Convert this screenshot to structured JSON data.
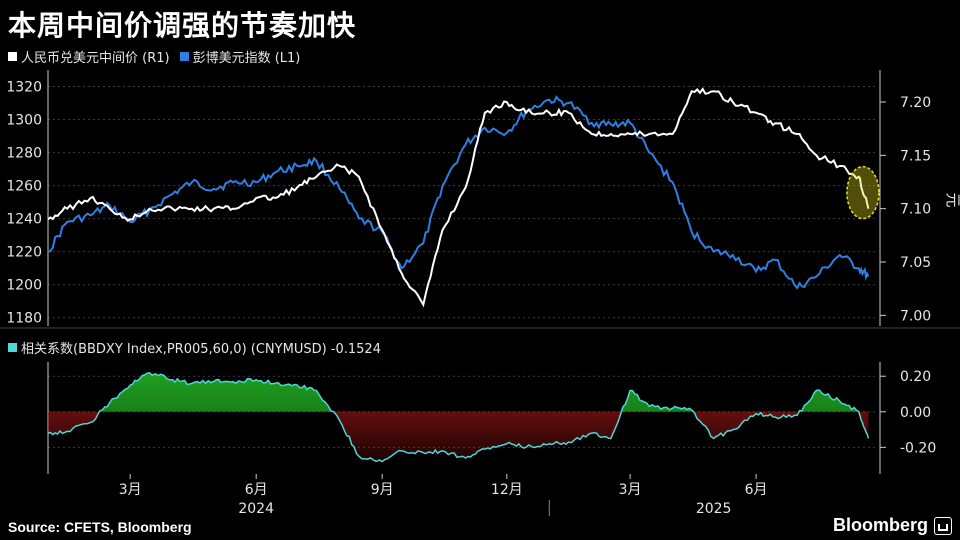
{
  "title": "本周中间价调强的节奏加快",
  "legend": {
    "cny": "人民币兑美元中间价 (R1)",
    "dxy": "彭博美元指数 (L1)",
    "corr": "相关系数(BBDXY Index,PR005,60,0) (CNYMUSD) -0.1524"
  },
  "right_unit": "元",
  "source": "Source: CFETS, Bloomberg",
  "brand": "Bloomberg",
  "colors": {
    "cny": "#ffffff",
    "dxy": "#2f7fe0",
    "positive": "#1fa01f",
    "negative": "#b01818",
    "corr_line": "#4fd6d6",
    "highlight": "#e8e020",
    "grid": "#3a3a3a"
  },
  "chart_data": [
    {
      "type": "line",
      "x_axis": {
        "ticks": [
          "3月",
          "6月",
          "9月",
          "12月",
          "3月",
          "6月"
        ],
        "years": [
          "2024",
          "2025"
        ]
      },
      "left_axis": {
        "ylim": [
          1175,
          1330
        ],
        "ticks": [
          1180,
          1200,
          1220,
          1240,
          1260,
          1280,
          1300,
          1320
        ]
      },
      "right_axis": {
        "ylim": [
          6.99,
          7.23
        ],
        "ticks": [
          "7.00",
          "7.05",
          "7.10",
          "7.15",
          "7.20"
        ],
        "unit": "元"
      },
      "grid": true,
      "dates": [
        "2024-01-01",
        "2024-01-15",
        "2024-02-01",
        "2024-02-15",
        "2024-03-01",
        "2024-03-15",
        "2024-04-01",
        "2024-04-15",
        "2024-05-01",
        "2024-05-15",
        "2024-06-01",
        "2024-06-15",
        "2024-07-01",
        "2024-07-15",
        "2024-08-01",
        "2024-08-15",
        "2024-09-01",
        "2024-09-15",
        "2024-10-01",
        "2024-10-15",
        "2024-11-01",
        "2024-11-15",
        "2024-12-01",
        "2024-12-15",
        "2025-01-01",
        "2025-01-15",
        "2025-02-01",
        "2025-02-15",
        "2025-03-01",
        "2025-03-15",
        "2025-04-01",
        "2025-04-15",
        "2025-05-01",
        "2025-05-15",
        "2025-06-01",
        "2025-06-15",
        "2025-07-01",
        "2025-07-15",
        "2025-08-01",
        "2025-08-15",
        "2025-08-22"
      ],
      "series": [
        {
          "name": "人民币兑美元中间价 (R1)",
          "axis": "right",
          "values": [
            7.09,
            7.1,
            7.11,
            7.1,
            7.09,
            7.1,
            7.1,
            7.1,
            7.1,
            7.1,
            7.11,
            7.11,
            7.12,
            7.13,
            7.14,
            7.13,
            7.08,
            7.04,
            7.01,
            7.08,
            7.12,
            7.19,
            7.2,
            7.19,
            7.19,
            7.19,
            7.17,
            7.17,
            7.17,
            7.17,
            7.17,
            7.21,
            7.21,
            7.2,
            7.19,
            7.18,
            7.17,
            7.15,
            7.14,
            7.13,
            7.1
          ]
        },
        {
          "name": "彭博美元指数 (L1)",
          "axis": "left",
          "values": [
            1220,
            1238,
            1242,
            1248,
            1238,
            1245,
            1255,
            1262,
            1258,
            1262,
            1262,
            1268,
            1272,
            1275,
            1258,
            1240,
            1232,
            1210,
            1225,
            1260,
            1285,
            1295,
            1292,
            1305,
            1312,
            1310,
            1298,
            1297,
            1298,
            1280,
            1262,
            1232,
            1220,
            1218,
            1208,
            1215,
            1198,
            1205,
            1218,
            1210,
            1205
          ]
        }
      ]
    },
    {
      "type": "area",
      "x_axis": {
        "ticks": [
          "3月",
          "6月",
          "9月",
          "12月",
          "3月",
          "6月"
        ],
        "years": [
          "2024",
          "2025"
        ]
      },
      "ylim": [
        -0.35,
        0.28
      ],
      "y_ticks": [
        "0.20",
        "0.00",
        "-0.20"
      ],
      "series": [
        {
          "name": "相关系数(BBDXY Index,PR005,60,0) (CNYMUSD)",
          "values": [
            -0.12,
            -0.11,
            -0.06,
            0.05,
            0.15,
            0.22,
            0.18,
            0.16,
            0.17,
            0.17,
            0.18,
            0.16,
            0.15,
            0.12,
            -0.05,
            -0.25,
            -0.28,
            -0.22,
            -0.23,
            -0.22,
            -0.26,
            -0.21,
            -0.18,
            -0.2,
            -0.18,
            -0.17,
            -0.12,
            -0.15,
            0.12,
            0.03,
            0.02,
            0.01,
            -0.15,
            -0.1,
            -0.01,
            -0.03,
            -0.02,
            0.12,
            0.06,
            0.0,
            -0.15
          ]
        }
      ]
    }
  ]
}
